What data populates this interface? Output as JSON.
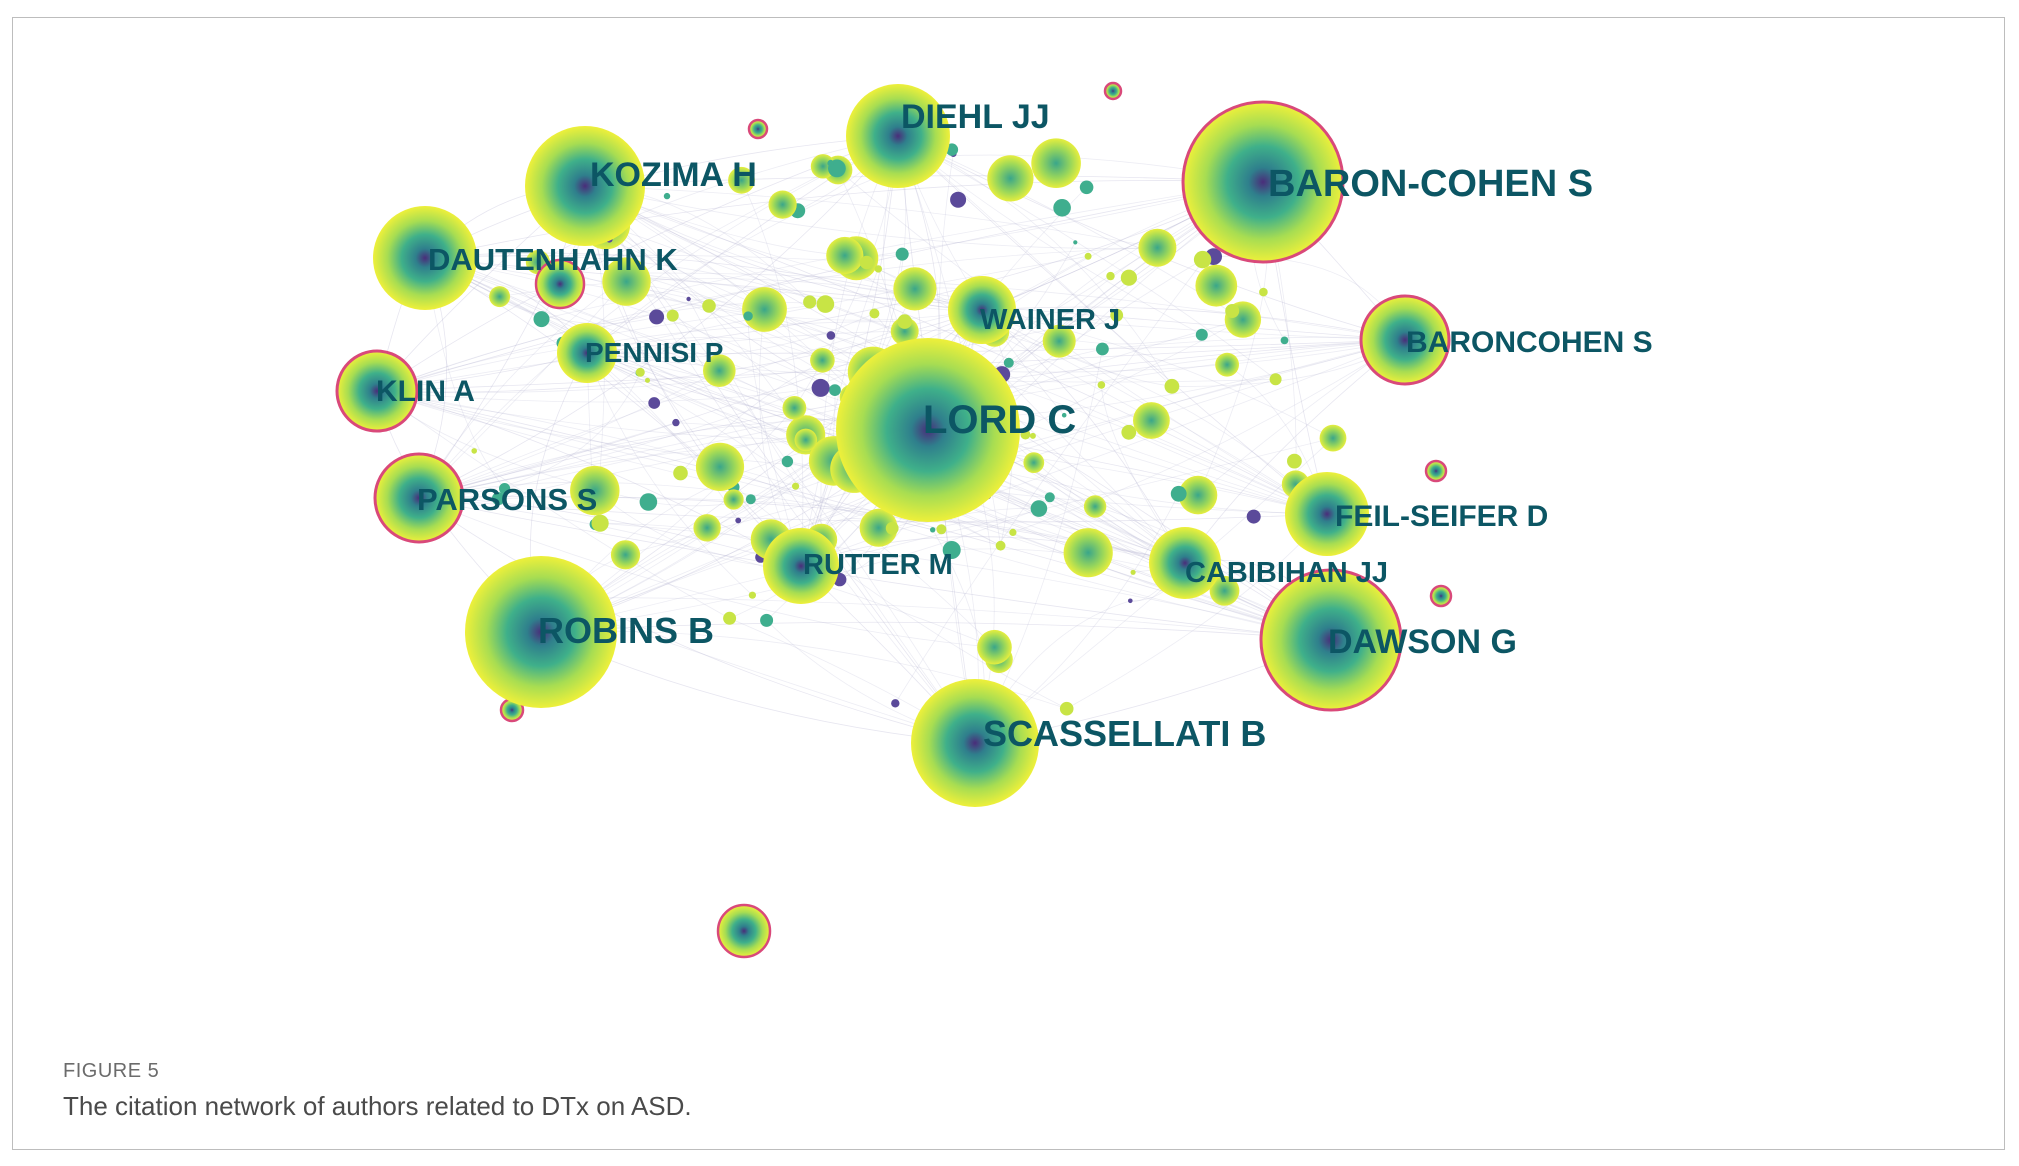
{
  "figure": {
    "label": "FIGURE 5",
    "caption": "The citation network of authors related to DTx on ASD."
  },
  "colors": {
    "node_outer": "#e8ee3a",
    "node_mid": "#72d16a",
    "node_inner": "#2a8a8a",
    "node_core": "#4a2d7a",
    "ring": "#d9497a",
    "label": "#0c5664",
    "edge": "#b9b6d4"
  },
  "nodes": [
    {
      "name": "LORD C"
    },
    {
      "name": "BARON-COHEN S"
    },
    {
      "name": "ROBINS B"
    },
    {
      "name": "DAWSON G"
    },
    {
      "name": "SCASSELLATI B"
    },
    {
      "name": "KOZIMA H"
    },
    {
      "name": "DIEHL JJ"
    },
    {
      "name": "DAUTENHAHN K"
    },
    {
      "name": "BARONCOHEN S"
    },
    {
      "name": "KLIN A"
    },
    {
      "name": "PARSONS S"
    },
    {
      "name": "FEIL-SEIFER D"
    },
    {
      "name": "CABIBIHAN JJ"
    },
    {
      "name": "RUTTER M"
    },
    {
      "name": "WAINER J"
    },
    {
      "name": "PENNISI P"
    }
  ]
}
